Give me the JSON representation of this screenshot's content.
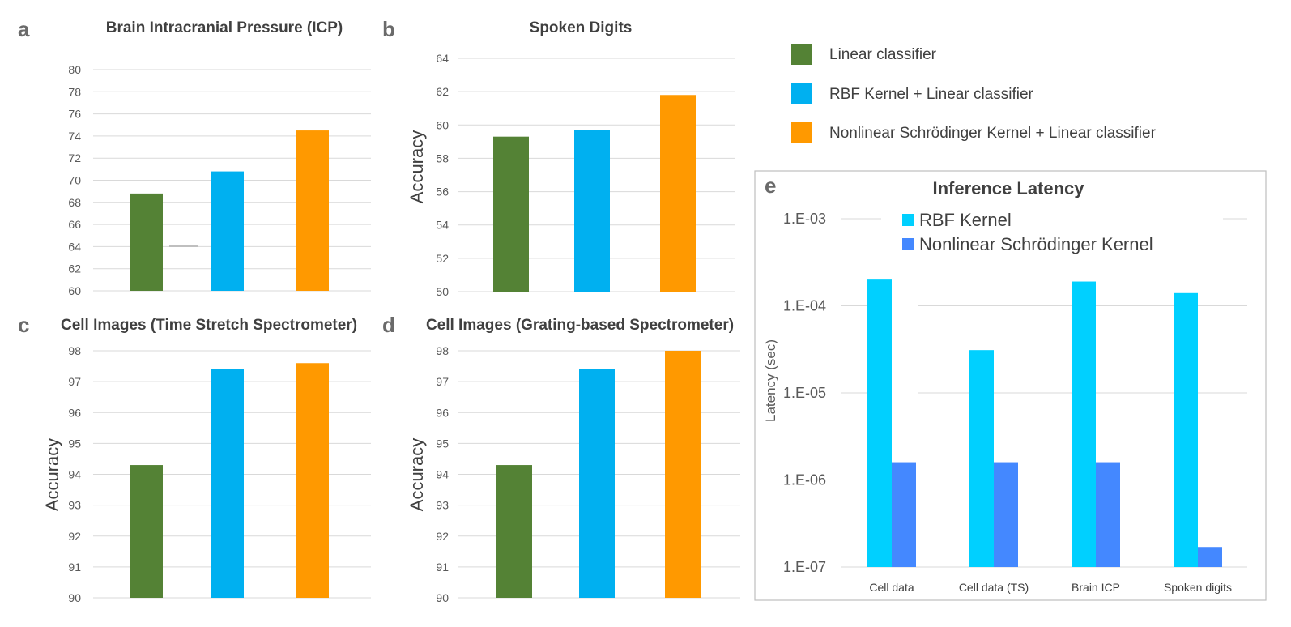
{
  "legend": [
    {
      "label": "Linear classifier",
      "color": "#548235"
    },
    {
      "label": "RBF Kernel + Linear classifier",
      "color": "#00b0f0"
    },
    {
      "label": "Nonlinear Schrödinger Kernel + Linear classifier",
      "color": "#ff9900"
    }
  ],
  "chart_data": [
    {
      "panel": "a",
      "type": "bar",
      "title": "Brain Intracranial Pressure (ICP)",
      "ylabel": "",
      "categories": [
        "Linear classifier",
        "RBF Kernel + Linear classifier",
        "Nonlinear Schrödinger Kernel + Linear classifier"
      ],
      "values": [
        68.8,
        70.8,
        74.5
      ],
      "colors": [
        "#548235",
        "#00b0f0",
        "#ff9900"
      ],
      "ylim": [
        60,
        80
      ],
      "yticks": [
        60,
        62,
        64,
        66,
        68,
        70,
        72,
        74,
        76,
        78,
        80
      ],
      "ytick_labels": [
        "60",
        "62",
        "64",
        "66",
        "68",
        "70",
        "72",
        "74",
        "76",
        "78",
        "80"
      ]
    },
    {
      "panel": "b",
      "type": "bar",
      "title": "Spoken Digits",
      "ylabel": "Accuracy",
      "categories": [
        "Linear classifier",
        "RBF Kernel + Linear classifier",
        "Nonlinear Schrödinger Kernel + Linear classifier"
      ],
      "values": [
        59.3,
        59.7,
        61.8
      ],
      "colors": [
        "#548235",
        "#00b0f0",
        "#ff9900"
      ],
      "ylim": [
        50,
        64
      ],
      "yticks": [
        50,
        52,
        54,
        56,
        58,
        60,
        62,
        64
      ],
      "ytick_labels": [
        "50",
        "52",
        "54",
        "56",
        "58",
        "60",
        "62",
        "64"
      ]
    },
    {
      "panel": "c",
      "type": "bar",
      "title": "Cell Images (Time Stretch Spectrometer)",
      "ylabel": "Accuracy",
      "categories": [
        "Linear classifier",
        "RBF Kernel + Linear classifier",
        "Nonlinear Schrödinger Kernel + Linear classifier"
      ],
      "values": [
        94.3,
        97.4,
        97.6
      ],
      "colors": [
        "#548235",
        "#00b0f0",
        "#ff9900"
      ],
      "ylim": [
        90,
        98
      ],
      "yticks": [
        90,
        91,
        92,
        93,
        94,
        95,
        96,
        97,
        98
      ],
      "ytick_labels": [
        "90",
        "91",
        "92",
        "93",
        "94",
        "95",
        "96",
        "97",
        "98"
      ]
    },
    {
      "panel": "d",
      "type": "bar",
      "title": "Cell Images (Grating-based Spectrometer)",
      "ylabel": "Accuracy",
      "categories": [
        "Linear classifier",
        "RBF Kernel + Linear classifier",
        "Nonlinear Schrödinger Kernel + Linear classifier"
      ],
      "values": [
        94.3,
        97.4,
        98.0
      ],
      "colors": [
        "#548235",
        "#00b0f0",
        "#ff9900"
      ],
      "ylim": [
        90,
        98
      ],
      "yticks": [
        90,
        91,
        92,
        93,
        94,
        95,
        96,
        97,
        98
      ],
      "ytick_labels": [
        "90",
        "91",
        "92",
        "93",
        "94",
        "95",
        "96",
        "97",
        "98"
      ]
    },
    {
      "panel": "e",
      "type": "bar",
      "yscale": "log",
      "title": "Inference Latency",
      "ylabel": "Latency (sec)",
      "categories": [
        "Cell data",
        "Cell data (TS)",
        "Brain ICP",
        "Spoken digits"
      ],
      "series": [
        {
          "name": "RBF Kernel",
          "color": "#00d0ff",
          "values": [
            0.0002,
            3.1e-05,
            0.00019,
            0.00014
          ]
        },
        {
          "name": "Nonlinear Schrödinger Kernel",
          "color": "#4488ff",
          "values": [
            1.6e-06,
            1.6e-06,
            1.6e-06,
            1.7e-07
          ]
        }
      ],
      "ylim": [
        1e-07,
        0.001
      ],
      "yticks": [
        1e-07,
        1e-06,
        1e-05,
        0.0001,
        0.001
      ],
      "ytick_labels": [
        "1.E-07",
        "1.E-06",
        "1.E-05",
        "1.E-04",
        "1.E-03"
      ]
    }
  ]
}
